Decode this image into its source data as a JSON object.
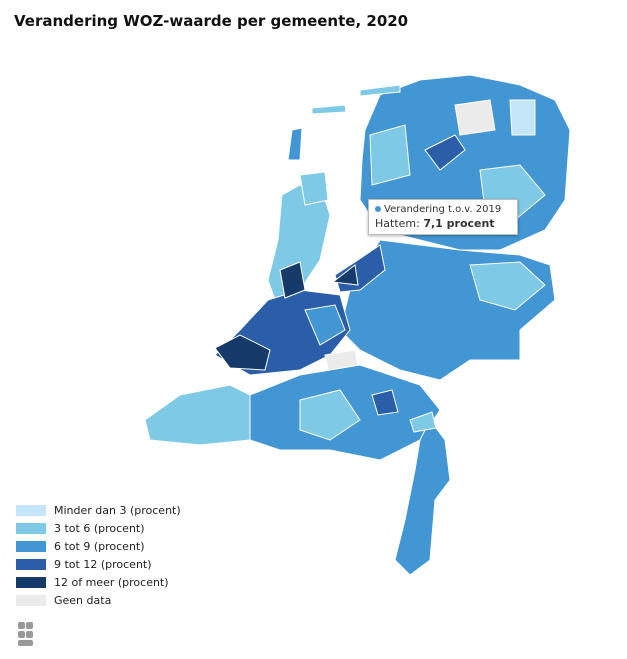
{
  "title": "Verandering WOZ-waarde per gemeente, 2020",
  "tooltip": {
    "series": "Verandering t.o.v. 2019",
    "label": "Hattem:",
    "value": "7,1 procent"
  },
  "legend": [
    {
      "label": "Minder dan 3 (procent)",
      "color": "#c4e6f8"
    },
    {
      "label": "3 tot 6 (procent)",
      "color": "#7ec9e6"
    },
    {
      "label": "6 tot 9 (procent)",
      "color": "#4196d3"
    },
    {
      "label": "9 tot 12 (procent)",
      "color": "#2a5ea8"
    },
    {
      "label": "12 of meer (procent)",
      "color": "#163b6b"
    },
    {
      "label": "Geen data",
      "color": "#ebebeb"
    }
  ]
}
